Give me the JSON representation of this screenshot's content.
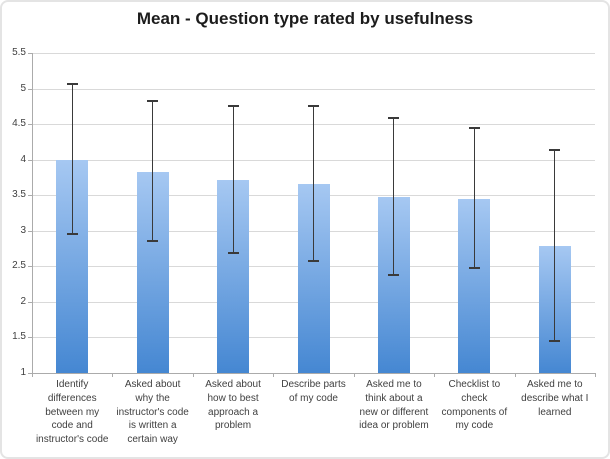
{
  "chart_data": {
    "type": "bar",
    "title": "Mean - Question type rated by usefulness",
    "categories": [
      [
        "Identify",
        "differences",
        "between my",
        "code and",
        "instructor's code"
      ],
      [
        "Asked about",
        "why the",
        "instructor's code",
        "is written a",
        "certain way"
      ],
      [
        "Asked about",
        "how to best",
        "approach a",
        "problem"
      ],
      [
        "Describe parts",
        "of my code"
      ],
      [
        "Asked me to",
        "think about a",
        "new or different",
        "idea or problem"
      ],
      [
        "Checklist to",
        "check",
        "components of",
        "my code"
      ],
      [
        "Asked me to",
        "describe what I",
        "learned"
      ]
    ],
    "values": [
      4.0,
      3.83,
      3.72,
      3.66,
      3.47,
      3.45,
      2.79
    ],
    "error_high": [
      5.07,
      4.83,
      4.76,
      4.76,
      4.58,
      4.44,
      4.13
    ],
    "error_low": [
      2.95,
      2.85,
      2.69,
      2.58,
      2.38,
      2.48,
      1.45
    ],
    "xlabel": "",
    "ylabel": "",
    "ylim": [
      1,
      5.5
    ],
    "ytick_values": [
      5.5,
      5,
      4.5,
      4,
      3.5,
      3,
      2.5,
      2,
      1.5,
      1
    ],
    "ytick_labels": [
      "5.5",
      "5",
      "4.5",
      "4",
      "3.5",
      "3",
      "2.5",
      "2",
      "1.5",
      "1"
    ],
    "grid": true,
    "legend_position": "none",
    "colors": {
      "bar_gradient_top": "#a6c8f2",
      "bar_gradient_bottom": "#4587d2",
      "gridline": "#d9d9d9",
      "axis": "#ababab",
      "error_bar": "#3a3a3a",
      "text": "#3f3f3f",
      "title": "#1c1c1c"
    }
  }
}
